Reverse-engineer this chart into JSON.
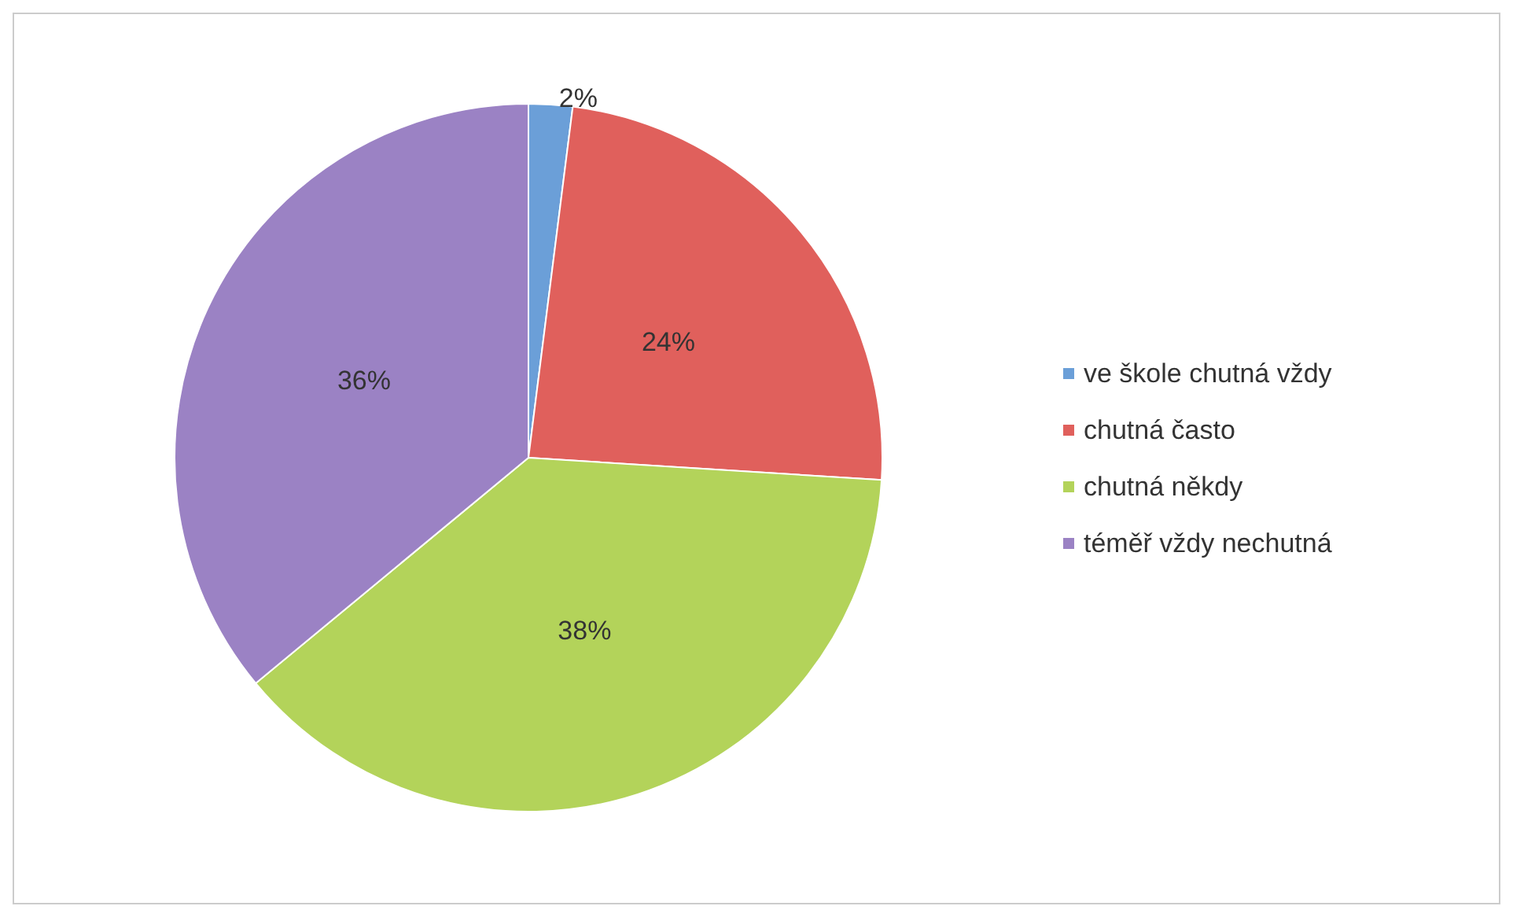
{
  "chart_data": {
    "type": "pie",
    "categories": [
      "ve škole chutná vždy",
      "chutná často",
      "chutná někdy",
      "téměř vždy nechutná"
    ],
    "values": [
      2,
      24,
      38,
      36
    ],
    "colors": [
      "#6b9fd8",
      "#e0605c",
      "#b3d35a",
      "#9b82c4"
    ],
    "value_labels": [
      "2%",
      "24%",
      "38%",
      "36%"
    ],
    "legend": "right"
  }
}
